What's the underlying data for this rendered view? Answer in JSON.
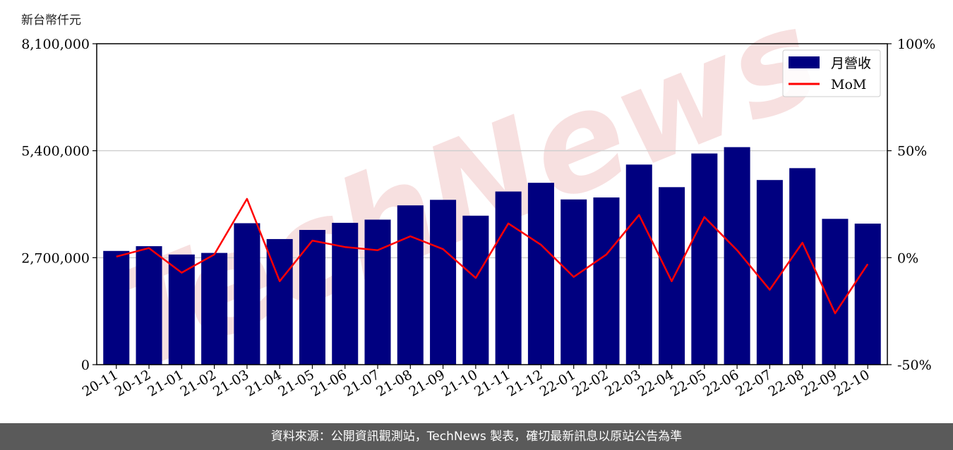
{
  "unit_label": "新台幣仟元",
  "footer_text": "資料來源：公開資訊觀測站，TechNews 製表，確切最新訊息以原站公告為準",
  "watermark_text": "TechNews",
  "colors": {
    "bar": "#000080",
    "line": "#ff0000",
    "grid": "#d0d0d0",
    "footer_bg": "#5a5a5a",
    "watermark": "#f2c8c8"
  },
  "chart_data": {
    "type": "bar",
    "categories": [
      "20-11",
      "20-12",
      "21-01",
      "21-02",
      "21-03",
      "21-04",
      "21-05",
      "21-06",
      "21-07",
      "21-08",
      "21-09",
      "21-10",
      "21-11",
      "21-12",
      "22-01",
      "22-02",
      "22-03",
      "22-04",
      "22-05",
      "22-06",
      "22-07",
      "22-08",
      "22-09",
      "22-10"
    ],
    "series": [
      {
        "name": "月營收",
        "axis": "left",
        "kind": "bar",
        "values": [
          2870000,
          2990000,
          2780000,
          2820000,
          3570000,
          3170000,
          3400000,
          3580000,
          3660000,
          4020000,
          4160000,
          3760000,
          4370000,
          4590000,
          4170000,
          4220000,
          5050000,
          4480000,
          5330000,
          5490000,
          4660000,
          4960000,
          3680000,
          3560000
        ]
      },
      {
        "name": "MoM",
        "axis": "right",
        "kind": "line",
        "values": [
          0.5,
          4.5,
          -7,
          1.5,
          27.5,
          -11,
          8,
          5,
          3.5,
          10,
          4,
          -9.5,
          16,
          6,
          -9,
          1.5,
          20,
          -11,
          19,
          3.5,
          -15,
          7,
          -26,
          -3
        ]
      }
    ],
    "y_left": {
      "min": 0,
      "max": 8100000,
      "ticks": [
        0,
        2700000,
        5400000,
        8100000
      ],
      "tick_labels": [
        "0",
        "2,700,000",
        "5,400,000",
        "8,100,000"
      ]
    },
    "y_right": {
      "min": -50,
      "max": 100,
      "ticks": [
        -50,
        0,
        50,
        100
      ],
      "tick_labels": [
        "-50%",
        "0%",
        "50%",
        "100%"
      ]
    },
    "grid": "horizontal",
    "legend": {
      "position": "top-right",
      "entries": [
        "月營收",
        "MoM"
      ]
    }
  }
}
